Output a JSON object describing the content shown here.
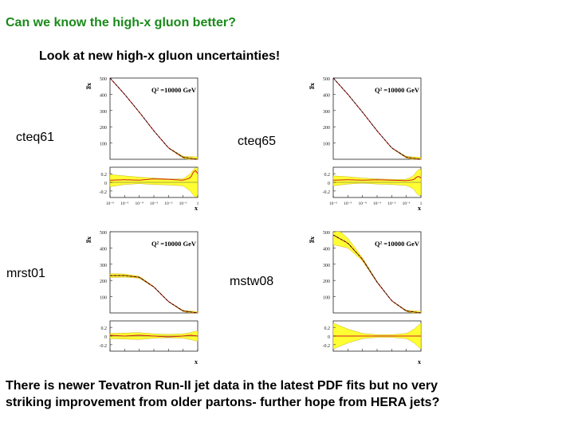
{
  "slide": {
    "title": "Can we know the high-x gluon better?",
    "subtitle": "Look at new high-x gluon uncertainties!",
    "footer_line1": "There is newer Tevatron Run-II jet data in the latest PDF fits but no very",
    "footer_line2": "striking improvement from older partons- further hope from HERA jets?"
  },
  "colors": {
    "title": "#1a8a1a",
    "band": "#ffff33",
    "central": "#000000",
    "alt": "#cc2222"
  },
  "chart_data": [
    {
      "type": "area",
      "name": "cteq61",
      "annotation": "Q² =10000 GeV",
      "ylabel_top": "xg",
      "xlabel": "x",
      "top": {
        "yticks": [
          "100",
          "200",
          "300",
          "400",
          "500"
        ],
        "ylim": [
          0,
          500
        ]
      },
      "bottom": {
        "yticks": [
          "0.2",
          "0",
          "-0.2"
        ],
        "ylim": [
          -0.35,
          0.35
        ]
      },
      "xticks": [
        "10⁻⁶",
        "10⁻⁵",
        "10⁻⁴",
        "10⁻³",
        "10⁻²",
        "10⁻¹",
        "1"
      ],
      "x_logmin": -6,
      "x_logmax": 0,
      "curve": [
        [
          -6,
          500
        ],
        [
          -5,
          400
        ],
        [
          -4,
          290
        ],
        [
          -3,
          175
        ],
        [
          -2,
          70
        ],
        [
          -1,
          12
        ],
        [
          0,
          0
        ]
      ],
      "band_top": [
        [
          -6,
          0.9
        ],
        [
          -5,
          0.9
        ],
        [
          -4,
          1
        ],
        [
          -3,
          1.1
        ],
        [
          -2,
          2
        ],
        [
          -1,
          6
        ],
        [
          0,
          14
        ]
      ],
      "ratio": [
        [
          -6,
          0.05
        ],
        [
          -5,
          0.06
        ],
        [
          -4,
          0.05
        ],
        [
          -3,
          0.08
        ],
        [
          -2,
          0.07
        ],
        [
          -1,
          0.05
        ],
        [
          -0.5,
          0.1
        ],
        [
          -0.2,
          0.3
        ],
        [
          0,
          0.2
        ]
      ],
      "ratio_up": [
        [
          -6,
          0.18
        ],
        [
          -5,
          0.15
        ],
        [
          -4,
          0.12
        ],
        [
          -3,
          0.1
        ],
        [
          -2,
          0.08
        ],
        [
          -1,
          0.08
        ],
        [
          -0.5,
          0.2
        ],
        [
          -0.2,
          0.34
        ],
        [
          0,
          0.34
        ]
      ],
      "ratio_dn": [
        [
          -6,
          -0.1
        ],
        [
          -5,
          -0.05
        ],
        [
          -4,
          -0.03
        ],
        [
          -3,
          -0.05
        ],
        [
          -2,
          -0.06
        ],
        [
          -1,
          -0.08
        ],
        [
          -0.5,
          -0.2
        ],
        [
          -0.2,
          -0.34
        ],
        [
          0,
          -0.34
        ]
      ]
    },
    {
      "type": "area",
      "name": "cteq65",
      "annotation": "Q² =10000 GeV",
      "ylabel_top": "xg",
      "xlabel": "x",
      "top": {
        "yticks": [
          "100",
          "200",
          "300",
          "400",
          "500"
        ],
        "ylim": [
          0,
          500
        ]
      },
      "bottom": {
        "yticks": [
          "0.2",
          "0",
          "-0.2"
        ],
        "ylim": [
          -0.35,
          0.35
        ]
      },
      "xticks": [
        "10⁻⁶",
        "10⁻⁵",
        "10⁻⁴",
        "10⁻³",
        "10⁻²",
        "10⁻¹",
        "1"
      ],
      "x_logmin": -6,
      "x_logmax": 0,
      "curve": [
        [
          -6,
          500
        ],
        [
          -5,
          400
        ],
        [
          -4,
          290
        ],
        [
          -3,
          175
        ],
        [
          -2,
          70
        ],
        [
          -1,
          12
        ],
        [
          0,
          0
        ]
      ],
      "band_top": [
        [
          -6,
          1
        ],
        [
          -5,
          1
        ],
        [
          -4,
          1
        ],
        [
          -3,
          1.2
        ],
        [
          -2,
          2
        ],
        [
          -1,
          5
        ],
        [
          0,
          12
        ]
      ],
      "ratio": [
        [
          -6,
          0.05
        ],
        [
          -5,
          0.06
        ],
        [
          -4,
          0.05
        ],
        [
          -3,
          0.06
        ],
        [
          -2,
          0.05
        ],
        [
          -1,
          0.04
        ],
        [
          -0.5,
          0.06
        ],
        [
          -0.2,
          0.15
        ],
        [
          0,
          0.1
        ]
      ],
      "ratio_up": [
        [
          -6,
          0.15
        ],
        [
          -5,
          0.13
        ],
        [
          -4,
          0.1
        ],
        [
          -3,
          0.08
        ],
        [
          -2,
          0.07
        ],
        [
          -1,
          0.07
        ],
        [
          -0.5,
          0.15
        ],
        [
          -0.2,
          0.3
        ],
        [
          0,
          0.3
        ]
      ],
      "ratio_dn": [
        [
          -6,
          -0.08
        ],
        [
          -5,
          -0.04
        ],
        [
          -4,
          -0.02
        ],
        [
          -3,
          -0.04
        ],
        [
          -2,
          -0.05
        ],
        [
          -1,
          -0.07
        ],
        [
          -0.5,
          -0.15
        ],
        [
          -0.2,
          -0.3
        ],
        [
          0,
          -0.3
        ]
      ]
    },
    {
      "type": "area",
      "name": "mrst01",
      "annotation": "Q² =10000 GeV",
      "ylabel_top": "xg",
      "xlabel": "x",
      "top": {
        "yticks": [
          "100",
          "200",
          "300",
          "400",
          "500"
        ],
        "ylim": [
          0,
          500
        ]
      },
      "bottom": {
        "yticks": [
          "0.2",
          "0",
          "-0.2"
        ],
        "ylim": [
          -0.35,
          0.35
        ]
      },
      "xticks": [],
      "x_logmin": -6,
      "x_logmax": 0,
      "curve": [
        [
          -6,
          230
        ],
        [
          -5,
          230
        ],
        [
          -4,
          220
        ],
        [
          -3,
          160
        ],
        [
          -2,
          70
        ],
        [
          -1,
          12
        ],
        [
          0,
          0
        ]
      ],
      "band_top": [
        [
          -6,
          12
        ],
        [
          -5,
          10
        ],
        [
          -4,
          6
        ],
        [
          -3,
          3
        ],
        [
          -2,
          2
        ],
        [
          -1,
          4
        ],
        [
          0,
          8
        ]
      ],
      "ratio": [
        [
          -6,
          0.02
        ],
        [
          -5,
          0.0
        ],
        [
          -4,
          0.02
        ],
        [
          -3,
          0.0
        ],
        [
          -2,
          -0.02
        ],
        [
          -1,
          0.0
        ],
        [
          -0.5,
          0.02
        ],
        [
          0,
          0.0
        ]
      ],
      "ratio_up": [
        [
          -6,
          0.06
        ],
        [
          -5,
          0.07
        ],
        [
          -4,
          0.08
        ],
        [
          -3,
          0.05
        ],
        [
          -2,
          0.04
        ],
        [
          -1,
          0.05
        ],
        [
          -0.5,
          0.08
        ],
        [
          0,
          0.12
        ]
      ],
      "ratio_dn": [
        [
          -6,
          -0.06
        ],
        [
          -5,
          -0.07
        ],
        [
          -4,
          -0.08
        ],
        [
          -3,
          -0.05
        ],
        [
          -2,
          -0.04
        ],
        [
          -1,
          -0.05
        ],
        [
          -0.5,
          -0.08
        ],
        [
          0,
          -0.12
        ]
      ]
    },
    {
      "type": "area",
      "name": "mstw08",
      "annotation": "Q² =10000 GeV",
      "ylabel_top": "xg",
      "xlabel": "x",
      "top": {
        "yticks": [
          "100",
          "200",
          "300",
          "400",
          "500"
        ],
        "ylim": [
          0,
          500
        ]
      },
      "bottom": {
        "yticks": [
          "0.2",
          "0",
          "-0.2"
        ],
        "ylim": [
          -0.35,
          0.35
        ]
      },
      "xticks": [],
      "x_logmin": -6,
      "x_logmax": 0,
      "curve": [
        [
          -6,
          480
        ],
        [
          -5,
          430
        ],
        [
          -4,
          330
        ],
        [
          -3,
          190
        ],
        [
          -2,
          75
        ],
        [
          -1,
          12
        ],
        [
          0,
          0
        ]
      ],
      "band_top": [
        [
          -6,
          60
        ],
        [
          -5,
          30
        ],
        [
          -4,
          10
        ],
        [
          -3,
          4
        ],
        [
          -2,
          2
        ],
        [
          -1,
          4
        ],
        [
          0,
          10
        ]
      ],
      "ratio": [
        [
          -6,
          0.0
        ],
        [
          -5,
          0.0
        ],
        [
          -4,
          0.0
        ],
        [
          -3,
          0.0
        ],
        [
          -2,
          0.0
        ],
        [
          -1,
          0.0
        ],
        [
          0,
          0.0
        ]
      ],
      "ratio_up": [
        [
          -6,
          0.3
        ],
        [
          -5,
          0.16
        ],
        [
          -4,
          0.06
        ],
        [
          -3,
          0.03
        ],
        [
          -2,
          0.03
        ],
        [
          -1,
          0.06
        ],
        [
          -0.5,
          0.15
        ],
        [
          0,
          0.3
        ]
      ],
      "ratio_dn": [
        [
          -6,
          -0.3
        ],
        [
          -5,
          -0.16
        ],
        [
          -4,
          -0.06
        ],
        [
          -3,
          -0.03
        ],
        [
          -2,
          -0.03
        ],
        [
          -1,
          -0.06
        ],
        [
          -0.5,
          -0.15
        ],
        [
          0,
          -0.3
        ]
      ]
    }
  ]
}
